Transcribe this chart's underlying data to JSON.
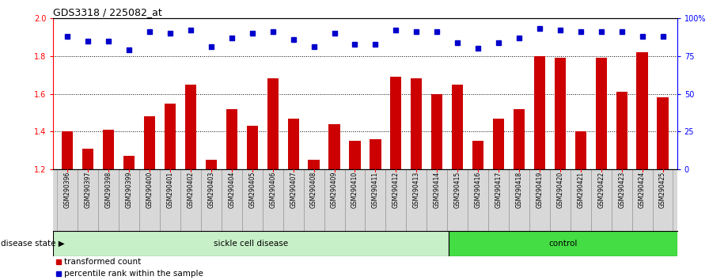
{
  "title": "GDS3318 / 225082_at",
  "samples": [
    "GSM290396",
    "GSM290397",
    "GSM290398",
    "GSM290399",
    "GSM290400",
    "GSM290401",
    "GSM290402",
    "GSM290403",
    "GSM290404",
    "GSM290405",
    "GSM290406",
    "GSM290407",
    "GSM290408",
    "GSM290409",
    "GSM290410",
    "GSM290411",
    "GSM290412",
    "GSM290413",
    "GSM290414",
    "GSM290415",
    "GSM290416",
    "GSM290417",
    "GSM290418",
    "GSM290419",
    "GSM290420",
    "GSM290421",
    "GSM290422",
    "GSM290423",
    "GSM290424",
    "GSM290425"
  ],
  "bar_values": [
    1.4,
    1.31,
    1.41,
    1.27,
    1.48,
    1.55,
    1.65,
    1.25,
    1.52,
    1.43,
    1.68,
    1.47,
    1.25,
    1.44,
    1.35,
    1.36,
    1.69,
    1.68,
    1.6,
    1.65,
    1.35,
    1.47,
    1.52,
    1.8,
    1.79,
    1.4,
    1.79,
    1.61,
    1.82,
    1.58
  ],
  "percentile_values": [
    88,
    85,
    85,
    79,
    91,
    90,
    92,
    81,
    87,
    90,
    91,
    86,
    81,
    90,
    83,
    83,
    92,
    91,
    91,
    84,
    80,
    84,
    87,
    93,
    92,
    91,
    91,
    91,
    88,
    88
  ],
  "sickle_count": 19,
  "control_count": 11,
  "ylim_left": [
    1.2,
    2.0
  ],
  "ylim_right": [
    0,
    100
  ],
  "y_ticks_left": [
    1.2,
    1.4,
    1.6,
    1.8,
    2.0
  ],
  "y_ticks_right": [
    0,
    25,
    50,
    75,
    100
  ],
  "y_tick_labels_right": [
    "0",
    "25",
    "50",
    "75",
    "100%"
  ],
  "bar_color": "#cc0000",
  "dot_color": "#0000cc",
  "sickle_color": "#c8f0c8",
  "control_color": "#44dd44",
  "sickle_label": "sickle cell disease",
  "control_label": "control",
  "disease_state_label": "disease state",
  "legend_bar_label": "transformed count",
  "legend_dot_label": "percentile rank within the sample",
  "xtick_bg_color": "#d8d8d8",
  "xtick_border_color": "#999999"
}
